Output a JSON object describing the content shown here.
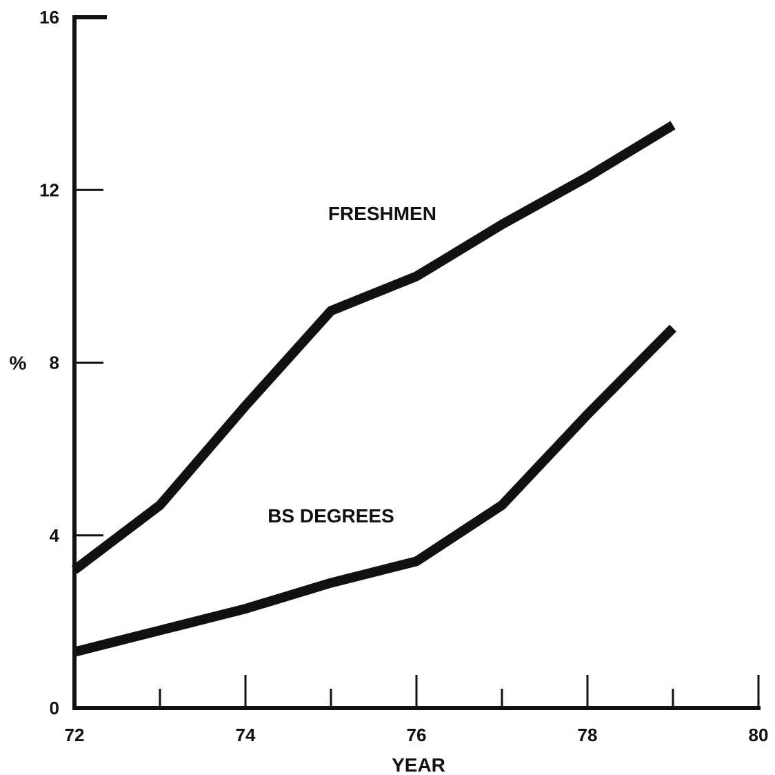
{
  "chart_data": {
    "type": "line",
    "title": "",
    "xlabel": "YEAR",
    "ylabel": "%",
    "xlim": [
      72,
      80
    ],
    "ylim": [
      0,
      16
    ],
    "x_ticks_major": [
      72,
      74,
      76,
      78,
      80
    ],
    "x_ticks_minor": [
      73,
      75,
      77,
      79
    ],
    "x_tick_labels": [
      "72",
      "74",
      "76",
      "78",
      "80"
    ],
    "y_ticks": [
      0,
      4,
      8,
      12,
      16
    ],
    "y_tick_labels": [
      "0",
      "4",
      "8",
      "12",
      "16"
    ],
    "grid": false,
    "series": [
      {
        "name": "FRESHMEN",
        "x": [
          72,
          73,
          74,
          75,
          76,
          77,
          78,
          79
        ],
        "y": [
          3.2,
          4.7,
          7.0,
          9.2,
          10.0,
          11.2,
          12.3,
          13.5
        ]
      },
      {
        "name": "BS DEGREES",
        "x": [
          72,
          73,
          74,
          75,
          76,
          77,
          78,
          79
        ],
        "y": [
          1.3,
          1.8,
          2.3,
          2.9,
          3.4,
          4.7,
          6.8,
          8.8
        ]
      }
    ],
    "annotations": [
      {
        "text": "FRESHMEN",
        "x": 75.6,
        "y": 11.3
      },
      {
        "text": "BS DEGREES",
        "x": 75.0,
        "y": 4.3
      }
    ]
  }
}
